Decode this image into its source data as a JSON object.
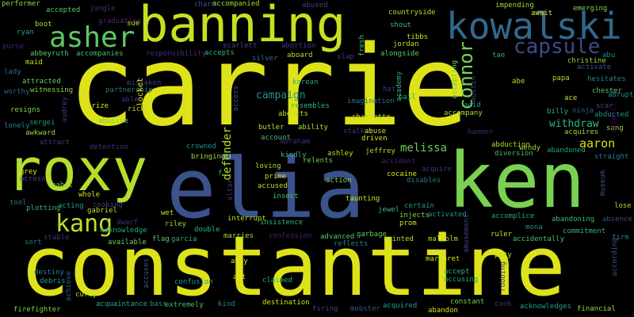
{
  "words": [
    {
      "text": "carrie",
      "color": "#dde318"
    },
    {
      "text": "constantine",
      "color": "#dde318"
    },
    {
      "text": "elia",
      "color": "#3b528b"
    },
    {
      "text": "ken",
      "color": "#7ad151"
    },
    {
      "text": "roxy",
      "color": "#b5de2b"
    },
    {
      "text": "banning",
      "color": "#c8e020"
    },
    {
      "text": "kowalski",
      "color": "#31688e"
    },
    {
      "text": "asher",
      "color": "#5ec962"
    },
    {
      "text": "kang",
      "color": "#bddf26"
    },
    {
      "text": "capsule",
      "color": "#3e4989"
    },
    {
      "text": "connor",
      "color": "#7ad151"
    },
    {
      "text": "aaron",
      "color": "#d8e219"
    },
    {
      "text": "melissa",
      "color": "#6ccd5a"
    },
    {
      "text": "withdraw",
      "color": "#35b779"
    },
    {
      "text": "defender",
      "color": "#b5de2b"
    },
    {
      "text": "campaign",
      "color": "#21918c"
    },
    {
      "text": "performer",
      "color": "#8fd744"
    },
    {
      "text": "accepted",
      "color": "#5ec962"
    },
    {
      "text": "accompanied",
      "color": "#a2da37"
    },
    {
      "text": "abused",
      "color": "#414487"
    },
    {
      "text": "impending",
      "color": "#9fda3a"
    },
    {
      "text": "await",
      "color": "#eae51a"
    },
    {
      "text": "emerging",
      "color": "#83d34b"
    },
    {
      "text": "jungle",
      "color": "#46337e"
    },
    {
      "text": "graduation",
      "color": "#482878"
    },
    {
      "text": "sue",
      "color": "#c2df23"
    },
    {
      "text": "charm",
      "color": "#3a548c"
    },
    {
      "text": "countryside",
      "color": "#b5de2b"
    },
    {
      "text": "shout",
      "color": "#3dbc74"
    },
    {
      "text": "boot",
      "color": "#a8db34"
    },
    {
      "text": "tibbs",
      "color": "#c8e020"
    },
    {
      "text": "ryan",
      "color": "#20a486"
    },
    {
      "text": "purse",
      "color": "#482878"
    },
    {
      "text": "abbey",
      "color": "#63cb5f"
    },
    {
      "text": "ruth",
      "color": "#4ac16d"
    },
    {
      "text": "accompanies",
      "color": "#46c06f"
    },
    {
      "text": "responsibility",
      "color": "#472d7b"
    },
    {
      "text": "accepts",
      "color": "#31b57b"
    },
    {
      "text": "scarlett",
      "color": "#414487"
    },
    {
      "text": "abortion",
      "color": "#443983"
    },
    {
      "text": "aboard",
      "color": "#b0dd2f"
    },
    {
      "text": "jordan",
      "color": "#c2df23"
    },
    {
      "text": "alongside",
      "color": "#5ec962"
    },
    {
      "text": "silver",
      "color": "#31688e"
    },
    {
      "text": "slap",
      "color": "#443a83"
    },
    {
      "text": "fresh",
      "color": "#4ac16d"
    },
    {
      "text": "maid",
      "color": "#bddf26"
    },
    {
      "text": "lady",
      "color": "#32648e"
    },
    {
      "text": "attracted",
      "color": "#6ccd5a"
    },
    {
      "text": "witnessing",
      "color": "#84d44b"
    },
    {
      "text": "worthy",
      "color": "#33638d"
    },
    {
      "text": "resigns",
      "color": "#7fd34e"
    },
    {
      "text": "sergei",
      "color": "#1e9b8a"
    },
    {
      "text": "lonely",
      "color": "#26828e"
    },
    {
      "text": "awkward",
      "color": "#95d840"
    },
    {
      "text": "attract",
      "color": "#453781"
    },
    {
      "text": "audrey",
      "color": "#443983"
    },
    {
      "text": "mistaken",
      "color": "#433e85"
    },
    {
      "text": "partnership",
      "color": "#2a788e"
    },
    {
      "text": "able",
      "color": "#472f7d"
    },
    {
      "text": "prize",
      "color": "#d5e21a"
    },
    {
      "text": "rick",
      "color": "#b8de29"
    },
    {
      "text": "abusive",
      "color": "#75d054"
    },
    {
      "text": "locket",
      "color": "#d5e21a"
    },
    {
      "text": "access",
      "color": "#3a548c"
    },
    {
      "text": "korean",
      "color": "#22a884"
    },
    {
      "text": "abducts",
      "color": "#c0df25"
    },
    {
      "text": "resembles",
      "color": "#2fb47c"
    },
    {
      "text": "imagination",
      "color": "#2a778e"
    },
    {
      "text": "charlotte",
      "color": "#addc30"
    },
    {
      "text": "accepting",
      "color": "#6ece58"
    },
    {
      "text": "austin",
      "color": "#414487"
    },
    {
      "text": "tae",
      "color": "#2db27d"
    },
    {
      "text": "christine",
      "color": "#95d840"
    },
    {
      "text": "activate",
      "color": "#3a548c"
    },
    {
      "text": "abu",
      "color": "#24878e"
    },
    {
      "text": "papa",
      "color": "#addc30"
    },
    {
      "text": "hesitates",
      "color": "#25858e"
    },
    {
      "text": "academy",
      "color": "#2eb37c"
    },
    {
      "text": "hat",
      "color": "#463480"
    },
    {
      "text": "bail",
      "color": "#24aa83"
    },
    {
      "text": "abe",
      "color": "#b8de29"
    },
    {
      "text": "acid",
      "color": "#1e9c89"
    },
    {
      "text": "chester",
      "color": "#5ec962"
    },
    {
      "text": "ace",
      "color": "#cae11f"
    },
    {
      "text": "abruptly",
      "color": "#228d8d"
    },
    {
      "text": "accompany",
      "color": "#a5db36"
    },
    {
      "text": "billy",
      "color": "#26ad81"
    },
    {
      "text": "ninja",
      "color": "#38588c"
    },
    {
      "text": "scar",
      "color": "#3e4989"
    },
    {
      "text": "abducted",
      "color": "#21918c"
    },
    {
      "text": "ability",
      "color": "#b0dd2f"
    },
    {
      "text": "butler",
      "color": "#bddf26"
    },
    {
      "text": "account",
      "color": "#4ac16d"
    },
    {
      "text": "abraham",
      "color": "#472d7b"
    },
    {
      "text": "stalker",
      "color": "#453781"
    },
    {
      "text": "abuse",
      "color": "#cde11d"
    },
    {
      "text": "driven",
      "color": "#dde318"
    },
    {
      "text": "hammer",
      "color": "#482576"
    },
    {
      "text": "abduction",
      "color": "#b5de2b"
    },
    {
      "text": "diversion",
      "color": "#3dbc74"
    },
    {
      "text": "wendy",
      "color": "#a5db36"
    },
    {
      "text": "abandoned",
      "color": "#20a386"
    },
    {
      "text": "acquires",
      "color": "#98d83e"
    },
    {
      "text": "sang",
      "color": "#9dd93b"
    },
    {
      "text": "abigail",
      "color": "#440154"
    },
    {
      "text": "crowned",
      "color": "#21918c"
    },
    {
      "text": "bringing",
      "color": "#a0da39"
    },
    {
      "text": "kindly",
      "color": "#2fb47c"
    },
    {
      "text": "ashley",
      "color": "#c2df23"
    },
    {
      "text": "jeffrey",
      "color": "#a5db36"
    },
    {
      "text": "relents",
      "color": "#73d056"
    },
    {
      "text": "accident",
      "color": "#482173"
    },
    {
      "text": "acquire",
      "color": "#453581"
    },
    {
      "text": "straight",
      "color": "#26828e"
    },
    {
      "text": "detention",
      "color": "#472f7d"
    },
    {
      "text": "grey",
      "color": "#cde11d"
    },
    {
      "text": "across",
      "color": "#3e4989"
    },
    {
      "text": "loving",
      "color": "#addc30"
    },
    {
      "text": "prime",
      "color": "#c2df23"
    },
    {
      "text": "cocaine",
      "color": "#d2e21b"
    },
    {
      "text": "disables",
      "color": "#2a788e"
    },
    {
      "text": "action",
      "color": "#88d548"
    },
    {
      "text": "habit",
      "color": "#7fd34e"
    },
    {
      "text": "whole",
      "color": "#d8e219"
    },
    {
      "text": "cooking",
      "color": "#423f85"
    },
    {
      "text": "f",
      "color": "#26ad81"
    },
    {
      "text": "altar",
      "color": "#46337e"
    },
    {
      "text": "accused",
      "color": "#c2df23"
    },
    {
      "text": "insect",
      "color": "#4ac16d"
    },
    {
      "text": "taunting",
      "color": "#d5e21a"
    },
    {
      "text": "museum",
      "color": "#3a548c"
    },
    {
      "text": "tool",
      "color": "#2c728e"
    },
    {
      "text": "plotting",
      "color": "#37b878"
    },
    {
      "text": "acting",
      "color": "#20a386"
    },
    {
      "text": "gabriel",
      "color": "#c0df25"
    },
    {
      "text": "dwarf",
      "color": "#472f7d"
    },
    {
      "text": "jewel",
      "color": "#3bbb75"
    },
    {
      "text": "certain",
      "color": "#1e9b8a"
    },
    {
      "text": "injects",
      "color": "#8bd646"
    },
    {
      "text": "activated",
      "color": "#21918c"
    },
    {
      "text": "lose",
      "color": "#a0da39"
    },
    {
      "text": "wet",
      "color": "#c8e020"
    },
    {
      "text": "interrupt",
      "color": "#b8de29"
    },
    {
      "text": "acknowledge",
      "color": "#22a785"
    },
    {
      "text": "sort",
      "color": "#2a788e"
    },
    {
      "text": "stable",
      "color": "#46337e"
    },
    {
      "text": "available",
      "color": "#6ece58"
    },
    {
      "text": "riley",
      "color": "#95d840"
    },
    {
      "text": "double",
      "color": "#31b57b"
    },
    {
      "text": "insistence",
      "color": "#2eb37c"
    },
    {
      "text": "prom",
      "color": "#d2e21b"
    },
    {
      "text": "accomplice",
      "color": "#22a884"
    },
    {
      "text": "absence",
      "color": "#3e4a89"
    },
    {
      "text": "abandoning",
      "color": "#3dbc74"
    },
    {
      "text": "mona",
      "color": "#238a8d"
    },
    {
      "text": "commitment",
      "color": "#2fb47c"
    },
    {
      "text": "firm",
      "color": "#2a788e"
    },
    {
      "text": "flag",
      "color": "#5ec962"
    },
    {
      "text": "garcia",
      "color": "#26ad81"
    },
    {
      "text": "marries",
      "color": "#addc30"
    },
    {
      "text": "confession",
      "color": "#482173"
    },
    {
      "text": "advanced",
      "color": "#5ec962"
    },
    {
      "text": "garbage",
      "color": "#63cb5f"
    },
    {
      "text": "reflects",
      "color": "#25838e"
    },
    {
      "text": "painted",
      "color": "#addc30"
    },
    {
      "text": "malcolm",
      "color": "#b0dd2f"
    },
    {
      "text": "amusement",
      "color": "#414487"
    },
    {
      "text": "ruler",
      "color": "#c8e020"
    },
    {
      "text": "accidentally",
      "color": "#46c06f"
    },
    {
      "text": "according",
      "color": "#3b528b"
    },
    {
      "text": "pity",
      "color": "#bddf26"
    },
    {
      "text": "margaret",
      "color": "#cde11d"
    },
    {
      "text": "robbing",
      "color": "#453781"
    },
    {
      "text": "accept",
      "color": "#2fb47c"
    },
    {
      "text": "accusing",
      "color": "#22a884"
    },
    {
      "text": "abby",
      "color": "#dde318"
    },
    {
      "text": "act",
      "color": "#d2e21b"
    },
    {
      "text": "claimed",
      "color": "#2db27d"
    },
    {
      "text": "destiny",
      "color": "#26828e"
    },
    {
      "text": "debris",
      "color": "#1f9e89"
    },
    {
      "text": "achieve",
      "color": "#35608d"
    },
    {
      "text": "curly",
      "color": "#addc30"
    },
    {
      "text": "accuses",
      "color": "#3b528b"
    },
    {
      "text": "confusion",
      "color": "#1e9b8a"
    },
    {
      "text": "acquaintance",
      "color": "#26ad81"
    },
    {
      "text": "bass",
      "color": "#21918c"
    },
    {
      "text": "extremely",
      "color": "#46c06f"
    },
    {
      "text": "kind",
      "color": "#238a8d"
    },
    {
      "text": "destination",
      "color": "#cde11d"
    },
    {
      "text": "firing",
      "color": "#414487"
    },
    {
      "text": "mobster",
      "color": "#3a548c"
    },
    {
      "text": "acquired",
      "color": "#20a386"
    },
    {
      "text": "abandon",
      "color": "#d2e21b"
    },
    {
      "text": "constant",
      "color": "#75d054"
    },
    {
      "text": "cook",
      "color": "#46337e"
    },
    {
      "text": "acknowledges",
      "color": "#1fa187"
    },
    {
      "text": "financial",
      "color": "#95d840"
    },
    {
      "text": "firefighter",
      "color": "#7ad151"
    }
  ]
}
